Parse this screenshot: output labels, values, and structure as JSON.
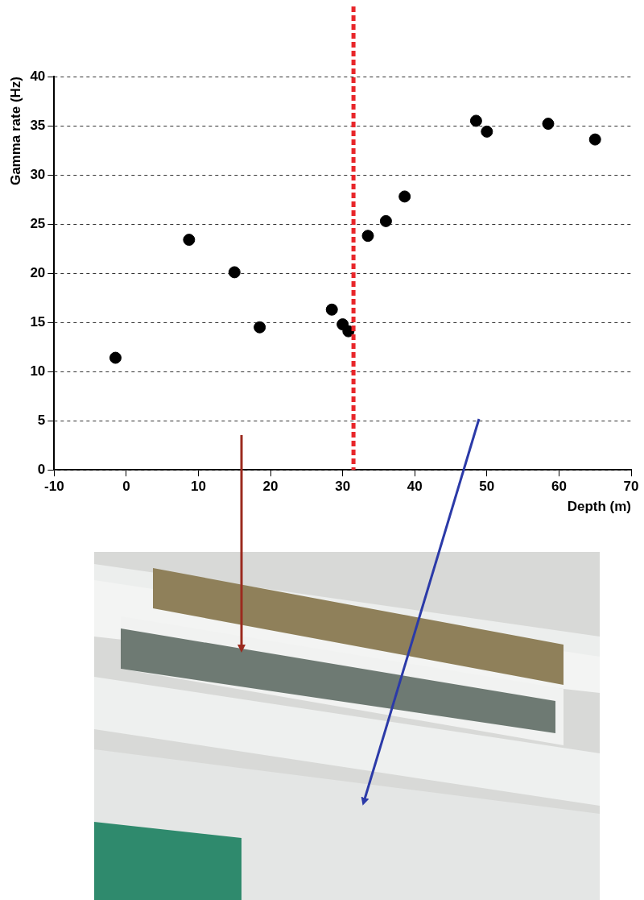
{
  "chart_data": {
    "type": "scatter",
    "xlabel": "Depth (m)",
    "ylabel": "Gamma rate (Hz)",
    "x": [
      -1.5,
      8.7,
      15.0,
      18.5,
      28.5,
      30.0,
      30.8,
      33.5,
      36.0,
      38.6,
      48.5,
      50.0,
      58.5,
      65.0
    ],
    "values": [
      11.4,
      23.4,
      20.1,
      14.5,
      16.3,
      14.8,
      14.1,
      23.8,
      25.3,
      27.8,
      35.5,
      34.4,
      35.2,
      33.6
    ],
    "color": "#000000",
    "marker": "circle",
    "xlim": [
      -10,
      70
    ],
    "xticks": [
      -10,
      0,
      10,
      20,
      30,
      40,
      50,
      60,
      70
    ],
    "ylim": [
      0,
      40
    ],
    "yticks": [
      0,
      5,
      10,
      15,
      20,
      25,
      30,
      35,
      40
    ],
    "grid": true,
    "vertical_line": {
      "x": 31.5,
      "color": "#e8262a",
      "line_style": "dashed"
    }
  }
}
